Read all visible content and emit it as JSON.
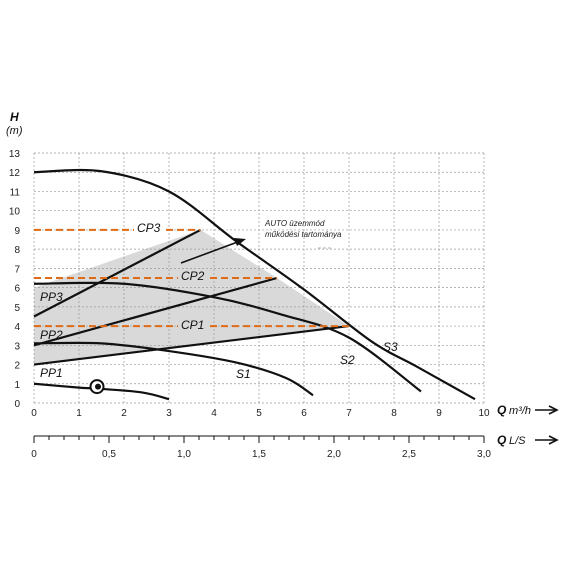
{
  "chart_data": {
    "type": "line",
    "y_axis": {
      "title": "H",
      "unit": "(m)",
      "ylim": [
        0,
        13
      ],
      "ticks": [
        "0",
        "1",
        "2",
        "3",
        "4",
        "5",
        "6",
        "7",
        "8",
        "9",
        "10",
        "11",
        "12",
        "13"
      ]
    },
    "x_axis_primary": {
      "title": "Q",
      "unit": "m³/h",
      "xlim": [
        0,
        10
      ],
      "ticks": [
        "0",
        "1",
        "2",
        "3",
        "4",
        "5",
        "6",
        "7",
        "8",
        "9",
        "10"
      ]
    },
    "x_axis_secondary": {
      "title": "Q",
      "unit": "L/S",
      "ticks": [
        "0",
        "0,5",
        "1,0",
        "1,5",
        "2,0",
        "2,5",
        "3,0"
      ]
    },
    "grid": true,
    "colors": {
      "curve": "#111111",
      "constant_pressure": "#e06a16",
      "auto_region": "#d9d9d9",
      "grid": "#9a9a9a"
    },
    "auto_region": {
      "polygon": [
        [
          0,
          2
        ],
        [
          0,
          6
        ],
        [
          3.7,
          9
        ],
        [
          5.4,
          6.5
        ],
        [
          7,
          4
        ]
      ]
    },
    "constant_speed_curves": [
      {
        "name": "S3",
        "points": [
          [
            0,
            12
          ],
          [
            1.5,
            12.05
          ],
          [
            3,
            11
          ],
          [
            4.5,
            8.4
          ],
          [
            6,
            5.9
          ],
          [
            7.5,
            3.2
          ],
          [
            8.5,
            1.9
          ],
          [
            9.8,
            0.2
          ]
        ]
      },
      {
        "name": "S2",
        "points": [
          [
            0,
            6.2
          ],
          [
            2,
            6.2
          ],
          [
            4,
            5.5
          ],
          [
            5.5,
            4.6
          ],
          [
            7,
            3.4
          ],
          [
            8.6,
            0.6
          ]
        ]
      },
      {
        "name": "S1",
        "points": [
          [
            0,
            3.1
          ],
          [
            1.5,
            3.1
          ],
          [
            3,
            2.7
          ],
          [
            4.5,
            2.1
          ],
          [
            5.6,
            1.3
          ],
          [
            6.2,
            0.4
          ]
        ]
      },
      {
        "name": "",
        "points": [
          [
            0,
            1
          ],
          [
            1,
            0.8
          ],
          [
            1.4,
            0.75
          ],
          [
            2.4,
            0.55
          ],
          [
            3.0,
            0.2
          ]
        ]
      }
    ],
    "proportional_pressure": [
      {
        "name": "PP3",
        "points": [
          [
            0,
            4.5
          ],
          [
            3.7,
            9
          ]
        ]
      },
      {
        "name": "PP2",
        "points": [
          [
            0,
            3
          ],
          [
            5.4,
            6.5
          ]
        ]
      },
      {
        "name": "PP1",
        "points": [
          [
            0,
            2
          ],
          [
            7,
            4
          ]
        ]
      }
    ],
    "constant_pressure": [
      {
        "name": "CP3",
        "y": 9,
        "x_end": 3.7
      },
      {
        "name": "CP2",
        "y": 6.5,
        "x_end": 5.4
      },
      {
        "name": "CP1",
        "y": 4,
        "x_end": 7
      }
    ],
    "annotation": {
      "line1": "AUTO üzemmód",
      "line2": "működési tartománya"
    },
    "marker": {
      "x": 1.4,
      "y": 0.75
    }
  }
}
